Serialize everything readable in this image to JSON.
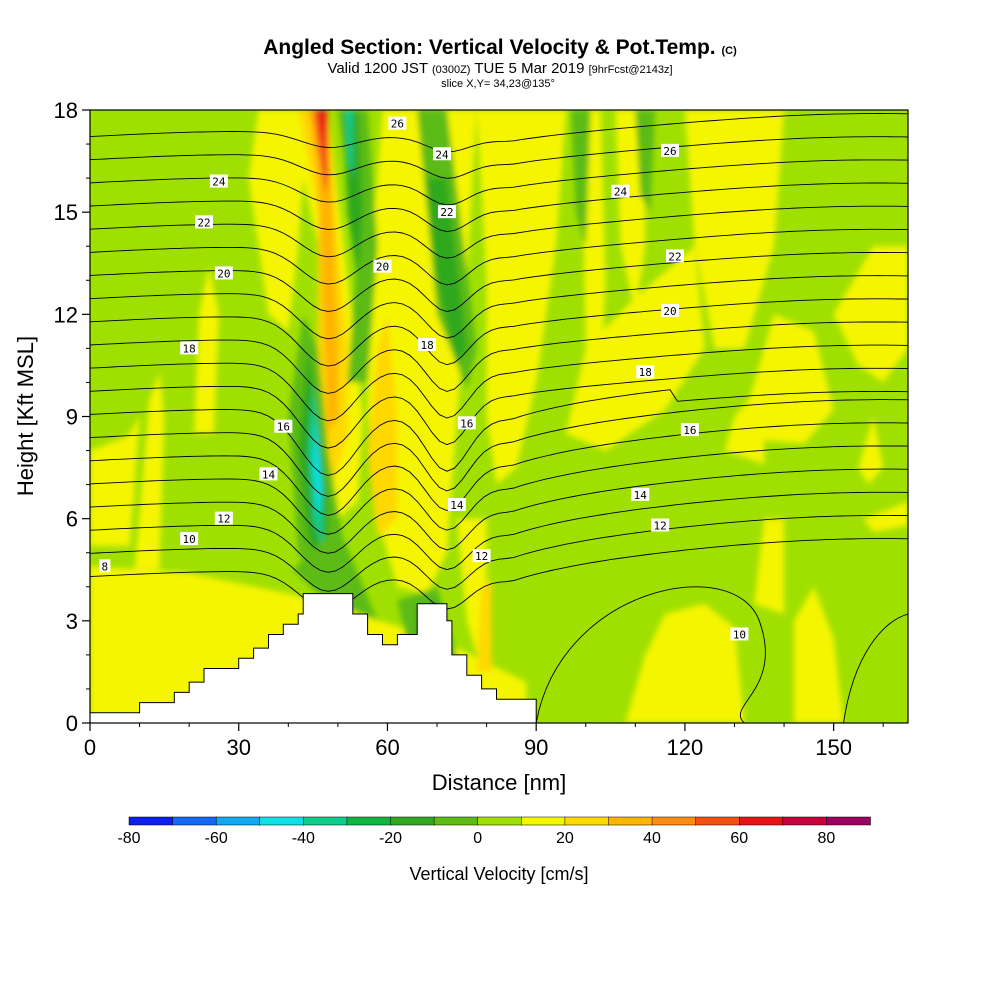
{
  "chart_data": {
    "type": "heatmap",
    "title": "Angled Section: Vertical Velocity & Pot.Temp.",
    "title_mark": "(C)",
    "subtitle": {
      "prefix": "Valid 1200 JST",
      "utc": "(0300Z)",
      "date": "TUE 5 Mar 2019",
      "fcst": "[9hrFcst@2143z]"
    },
    "slice": "slice X,Y= 34,23@135°",
    "xlabel": "Distance [nm]",
    "ylabel": "Height [Kft MSL]",
    "xlim": [
      0,
      165
    ],
    "ylim": [
      0,
      18
    ],
    "x_ticks": [
      0,
      30,
      60,
      90,
      120,
      150
    ],
    "y_ticks": [
      0,
      3,
      6,
      9,
      12,
      15,
      18
    ],
    "colorbar": {
      "label": "Vertical Velocity [cm/s]",
      "tick_values": [
        -80,
        -60,
        -40,
        -20,
        0,
        20,
        40,
        60,
        80
      ],
      "bounds": [
        -80,
        -70,
        -60,
        -50,
        -40,
        -30,
        -20,
        -10,
        0,
        10,
        20,
        30,
        40,
        50,
        60,
        70,
        80,
        90
      ],
      "colors": [
        "#0a1eef",
        "#1468f5",
        "#14a8f0",
        "#10e0e6",
        "#10cc8a",
        "#12b440",
        "#2ea81e",
        "#5cbb14",
        "#a0e000",
        "#f5f500",
        "#ffd800",
        "#ffb400",
        "#ff8c14",
        "#f55014",
        "#e61414",
        "#c8003c",
        "#9a0060",
        "#6a0090"
      ]
    },
    "terrain": [
      [
        0,
        0.3
      ],
      [
        10,
        0.3
      ],
      [
        10,
        0.6
      ],
      [
        17,
        0.6
      ],
      [
        17,
        0.9
      ],
      [
        20,
        0.9
      ],
      [
        20,
        1.2
      ],
      [
        23,
        1.2
      ],
      [
        23,
        1.6
      ],
      [
        30,
        1.6
      ],
      [
        30,
        1.9
      ],
      [
        33,
        1.9
      ],
      [
        33,
        2.2
      ],
      [
        36,
        2.2
      ],
      [
        36,
        2.6
      ],
      [
        39,
        2.6
      ],
      [
        39,
        2.9
      ],
      [
        42,
        2.9
      ],
      [
        42,
        3.2
      ],
      [
        43,
        3.2
      ],
      [
        43,
        3.8
      ],
      [
        53,
        3.8
      ],
      [
        53,
        3.2
      ],
      [
        56,
        3.2
      ],
      [
        56,
        2.6
      ],
      [
        59,
        2.6
      ],
      [
        59,
        2.3
      ],
      [
        62,
        2.3
      ],
      [
        62,
        2.6
      ],
      [
        66,
        2.6
      ],
      [
        66,
        3.5
      ],
      [
        72,
        3.5
      ],
      [
        72,
        3.0
      ],
      [
        73,
        3.0
      ],
      [
        73,
        2.0
      ],
      [
        76,
        2.0
      ],
      [
        76,
        1.4
      ],
      [
        79,
        1.4
      ],
      [
        79,
        1.0
      ],
      [
        82,
        1.0
      ],
      [
        82,
        0.7
      ],
      [
        90,
        0.7
      ],
      [
        90,
        0
      ]
    ],
    "theta_isentropes": [
      8,
      10,
      12,
      14,
      16,
      18,
      20,
      22,
      24,
      26
    ],
    "contour_labels": [
      {
        "text": "8",
        "x": 3,
        "y": 4.6
      },
      {
        "text": "10",
        "x": 20,
        "y": 5.4
      },
      {
        "text": "12",
        "x": 27,
        "y": 6.0
      },
      {
        "text": "14",
        "x": 36,
        "y": 7.3
      },
      {
        "text": "16",
        "x": 39,
        "y": 8.7
      },
      {
        "text": "18",
        "x": 20,
        "y": 11.0
      },
      {
        "text": "20",
        "x": 27,
        "y": 13.2
      },
      {
        "text": "22",
        "x": 23,
        "y": 14.7
      },
      {
        "text": "24",
        "x": 26,
        "y": 15.9
      },
      {
        "text": "26",
        "x": 62,
        "y": 17.6
      },
      {
        "text": "24",
        "x": 71,
        "y": 16.7
      },
      {
        "text": "22",
        "x": 72,
        "y": 15.0
      },
      {
        "text": "20",
        "x": 59,
        "y": 13.4
      },
      {
        "text": "18",
        "x": 68,
        "y": 11.1
      },
      {
        "text": "16",
        "x": 76,
        "y": 8.8
      },
      {
        "text": "14",
        "x": 74,
        "y": 6.4
      },
      {
        "text": "12",
        "x": 79,
        "y": 4.9
      },
      {
        "text": "14",
        "x": 111,
        "y": 6.7
      },
      {
        "text": "12",
        "x": 115,
        "y": 5.8
      },
      {
        "text": "16",
        "x": 121,
        "y": 8.6
      },
      {
        "text": "18",
        "x": 112,
        "y": 10.3
      },
      {
        "text": "20",
        "x": 117,
        "y": 12.1
      },
      {
        "text": "22",
        "x": 118,
        "y": 13.7
      },
      {
        "text": "24",
        "x": 107,
        "y": 15.6
      },
      {
        "text": "26",
        "x": 117,
        "y": 16.8
      },
      {
        "text": "10",
        "x": 131,
        "y": 2.6
      }
    ]
  }
}
